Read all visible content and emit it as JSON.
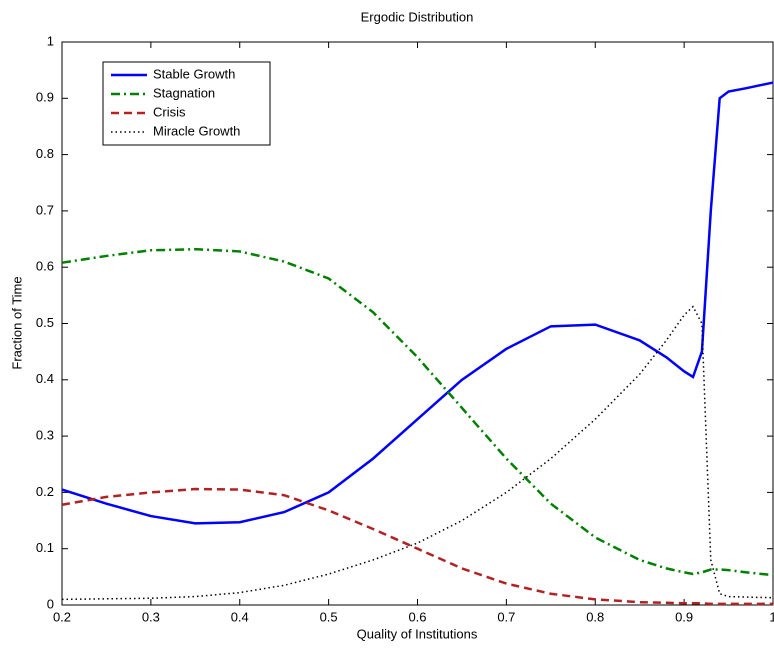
{
  "chart_data": {
    "type": "line",
    "title": "Ergodic Distribution",
    "x_label": "Quality of Institutions",
    "y_label": "Fraction of Time",
    "x": [
      0.2,
      0.25,
      0.3,
      0.35,
      0.4,
      0.45,
      0.5,
      0.55,
      0.6,
      0.65,
      0.7,
      0.75,
      0.8,
      0.85,
      0.88,
      0.9,
      0.91,
      0.92,
      0.93,
      0.94,
      0.95,
      0.97,
      1.0
    ],
    "series": [
      {
        "name": "Stable Growth",
        "color": "#0000ff",
        "style": "solid",
        "values": [
          0.205,
          0.18,
          0.158,
          0.145,
          0.147,
          0.165,
          0.2,
          0.26,
          0.33,
          0.4,
          0.455,
          0.495,
          0.498,
          0.47,
          0.44,
          0.415,
          0.405,
          0.45,
          0.7,
          0.9,
          0.912,
          0.918,
          0.928
        ]
      },
      {
        "name": "Stagnation",
        "color": "#008000",
        "style": "dashdot",
        "values": [
          0.608,
          0.62,
          0.63,
          0.632,
          0.628,
          0.61,
          0.58,
          0.52,
          0.44,
          0.35,
          0.26,
          0.18,
          0.12,
          0.08,
          0.065,
          0.058,
          0.055,
          0.058,
          0.063,
          0.063,
          0.062,
          0.058,
          0.053
        ]
      },
      {
        "name": "Crisis",
        "color": "#b22222",
        "style": "dashed",
        "values": [
          0.178,
          0.192,
          0.2,
          0.206,
          0.205,
          0.195,
          0.168,
          0.135,
          0.1,
          0.065,
          0.038,
          0.02,
          0.01,
          0.005,
          0.004,
          0.003,
          0.003,
          0.003,
          0.002,
          0.002,
          0.002,
          0.002,
          0.002
        ]
      },
      {
        "name": "Miracle Growth",
        "color": "#000000",
        "style": "dotted",
        "values": [
          0.01,
          0.011,
          0.012,
          0.015,
          0.022,
          0.035,
          0.055,
          0.08,
          0.11,
          0.15,
          0.2,
          0.26,
          0.33,
          0.41,
          0.47,
          0.515,
          0.53,
          0.5,
          0.08,
          0.02,
          0.015,
          0.014,
          0.013
        ]
      }
    ],
    "xlim": [
      0.2,
      1
    ],
    "ylim": [
      0,
      1
    ],
    "xticks": [
      0.2,
      0.3,
      0.4,
      0.5,
      0.6,
      0.7,
      0.8,
      0.9,
      1
    ],
    "yticks": [
      0,
      0.1,
      0.2,
      0.3,
      0.4,
      0.5,
      0.6,
      0.7,
      0.8,
      0.9,
      1
    ],
    "grid": false,
    "legend_position": "upper-left"
  }
}
